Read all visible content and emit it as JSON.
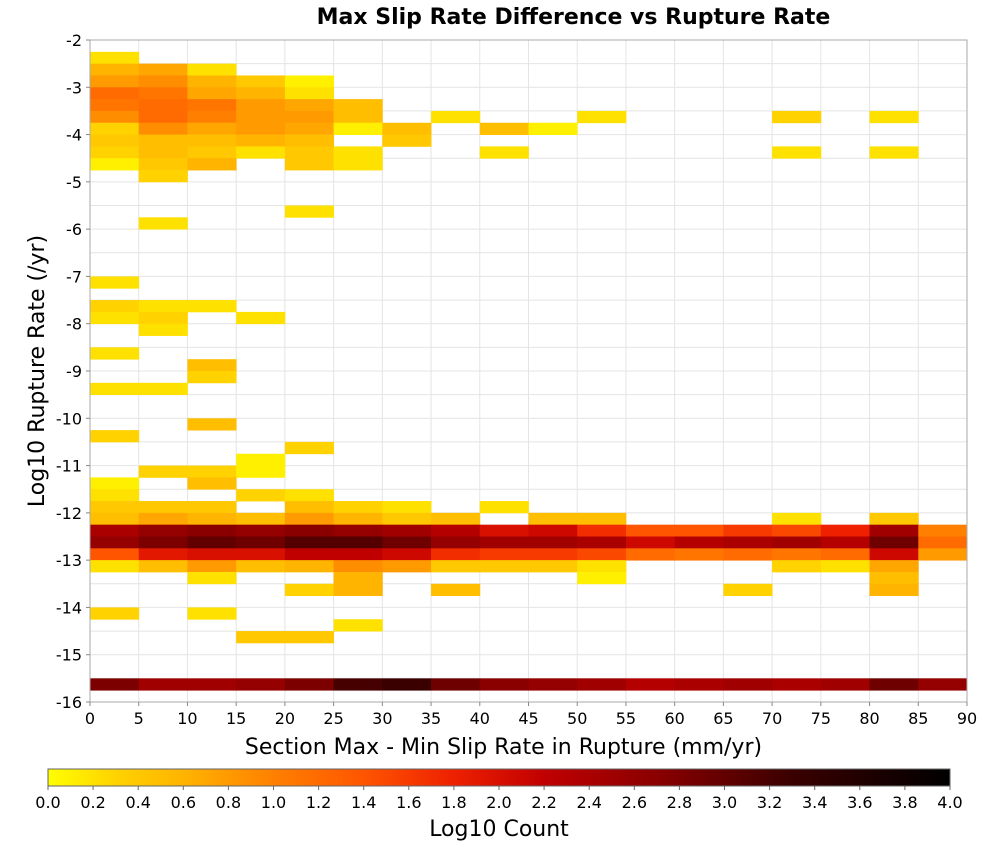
{
  "chart_data": {
    "type": "heatmap",
    "title": "Max Slip Rate Difference vs Rupture Rate",
    "xlabel": "Section Max - Min Slip Rate in Rupture (mm/yr)",
    "ylabel": "Log10 Rupture Rate (/yr)",
    "xlim": [
      0,
      90
    ],
    "ylim": [
      -16,
      -2
    ],
    "x_ticks": [
      0,
      5,
      10,
      15,
      20,
      25,
      30,
      35,
      40,
      45,
      50,
      55,
      60,
      65,
      70,
      75,
      80,
      85,
      90
    ],
    "y_ticks": [
      -2,
      -3,
      -4,
      -5,
      -6,
      -7,
      -8,
      -9,
      -10,
      -11,
      -12,
      -13,
      -14,
      -15,
      -16
    ],
    "cell_width": 5,
    "cell_height": 0.25,
    "grid": true,
    "colorbar": {
      "label": "Log10 Count",
      "min": 0.0,
      "max": 4.0,
      "ticks": [
        "0.0",
        "0.2",
        "0.4",
        "0.6",
        "0.8",
        "1.0",
        "1.2",
        "1.4",
        "1.6",
        "1.8",
        "2.0",
        "2.2",
        "2.4",
        "2.6",
        "2.8",
        "3.0",
        "3.2",
        "3.4",
        "3.6",
        "3.8",
        "4.0"
      ],
      "colors": [
        "#ffff00",
        "#ffd200",
        "#ffb400",
        "#ff8000",
        "#ff5500",
        "#ee2000",
        "#c00000",
        "#8a0000",
        "#3a0000",
        "#000000"
      ],
      "color_stops": [
        0.0,
        0.3,
        0.6,
        1.0,
        1.4,
        1.8,
        2.2,
        2.7,
        3.3,
        4.0
      ],
      "placement": "bottom"
    },
    "cells": [
      {
        "x": 0,
        "y": -2.5,
        "v": 0.2
      },
      {
        "x": 0,
        "y": -2.75,
        "v": 0.6
      },
      {
        "x": 5,
        "y": -2.75,
        "v": 0.7
      },
      {
        "x": 10,
        "y": -2.75,
        "v": 0.2
      },
      {
        "x": 0,
        "y": -3,
        "v": 0.8
      },
      {
        "x": 5,
        "y": -3,
        "v": 0.9
      },
      {
        "x": 10,
        "y": -3,
        "v": 0.6
      },
      {
        "x": 15,
        "y": -3,
        "v": 0.4
      },
      {
        "x": 20,
        "y": -3,
        "v": 0.1
      },
      {
        "x": 0,
        "y": -3.25,
        "v": 1.2
      },
      {
        "x": 5,
        "y": -3.25,
        "v": 1.1
      },
      {
        "x": 10,
        "y": -3.25,
        "v": 0.7
      },
      {
        "x": 15,
        "y": -3.25,
        "v": 0.6
      },
      {
        "x": 20,
        "y": -3.25,
        "v": 0.2
      },
      {
        "x": 0,
        "y": -3.5,
        "v": 1.1
      },
      {
        "x": 5,
        "y": -3.5,
        "v": 1.2
      },
      {
        "x": 10,
        "y": -3.5,
        "v": 1.1
      },
      {
        "x": 15,
        "y": -3.5,
        "v": 0.8
      },
      {
        "x": 20,
        "y": -3.5,
        "v": 0.7
      },
      {
        "x": 25,
        "y": -3.5,
        "v": 0.5
      },
      {
        "x": 0,
        "y": -3.75,
        "v": 0.9
      },
      {
        "x": 5,
        "y": -3.75,
        "v": 1.2
      },
      {
        "x": 10,
        "y": -3.75,
        "v": 1.0
      },
      {
        "x": 15,
        "y": -3.75,
        "v": 0.8
      },
      {
        "x": 20,
        "y": -3.75,
        "v": 0.8
      },
      {
        "x": 25,
        "y": -3.75,
        "v": 0.5
      },
      {
        "x": 35,
        "y": -3.75,
        "v": 0.2
      },
      {
        "x": 50,
        "y": -3.75,
        "v": 0.2
      },
      {
        "x": 70,
        "y": -3.75,
        "v": 0.3
      },
      {
        "x": 80,
        "y": -3.75,
        "v": 0.2
      },
      {
        "x": 0,
        "y": -4,
        "v": 0.3
      },
      {
        "x": 5,
        "y": -4,
        "v": 0.9
      },
      {
        "x": 10,
        "y": -4,
        "v": 0.7
      },
      {
        "x": 15,
        "y": -4,
        "v": 0.8
      },
      {
        "x": 20,
        "y": -4,
        "v": 0.7
      },
      {
        "x": 25,
        "y": -4,
        "v": 0.1
      },
      {
        "x": 30,
        "y": -4,
        "v": 0.5
      },
      {
        "x": 40,
        "y": -4,
        "v": 0.5
      },
      {
        "x": 45,
        "y": -4,
        "v": 0.1
      },
      {
        "x": 0,
        "y": -4.25,
        "v": 0.4
      },
      {
        "x": 5,
        "y": -4.25,
        "v": 0.5
      },
      {
        "x": 10,
        "y": -4.25,
        "v": 0.5
      },
      {
        "x": 15,
        "y": -4.25,
        "v": 0.6
      },
      {
        "x": 20,
        "y": -4.25,
        "v": 0.5
      },
      {
        "x": 30,
        "y": -4.25,
        "v": 0.4
      },
      {
        "x": 0,
        "y": -4.5,
        "v": 0.3
      },
      {
        "x": 5,
        "y": -4.5,
        "v": 0.5
      },
      {
        "x": 10,
        "y": -4.5,
        "v": 0.4
      },
      {
        "x": 15,
        "y": -4.5,
        "v": 0.2
      },
      {
        "x": 20,
        "y": -4.5,
        "v": 0.4
      },
      {
        "x": 25,
        "y": -4.5,
        "v": 0.2
      },
      {
        "x": 40,
        "y": -4.5,
        "v": 0.2
      },
      {
        "x": 70,
        "y": -4.5,
        "v": 0.2
      },
      {
        "x": 80,
        "y": -4.5,
        "v": 0.2
      },
      {
        "x": 0,
        "y": -4.75,
        "v": 0.1
      },
      {
        "x": 5,
        "y": -4.75,
        "v": 0.4
      },
      {
        "x": 10,
        "y": -4.75,
        "v": 0.6
      },
      {
        "x": 20,
        "y": -4.75,
        "v": 0.4
      },
      {
        "x": 25,
        "y": -4.75,
        "v": 0.2
      },
      {
        "x": 5,
        "y": -5,
        "v": 0.3
      },
      {
        "x": 20,
        "y": -5.75,
        "v": 0.2
      },
      {
        "x": 5,
        "y": -6,
        "v": 0.2
      },
      {
        "x": 0,
        "y": -7.25,
        "v": 0.2
      },
      {
        "x": 0,
        "y": -7.75,
        "v": 0.3
      },
      {
        "x": 5,
        "y": -7.75,
        "v": 0.2
      },
      {
        "x": 10,
        "y": -7.75,
        "v": 0.2
      },
      {
        "x": 0,
        "y": -8,
        "v": 0.2
      },
      {
        "x": 5,
        "y": -8,
        "v": 0.3
      },
      {
        "x": 15,
        "y": -8,
        "v": 0.2
      },
      {
        "x": 5,
        "y": -8.25,
        "v": 0.2
      },
      {
        "x": 0,
        "y": -8.75,
        "v": 0.2
      },
      {
        "x": 10,
        "y": -9,
        "v": 0.5
      },
      {
        "x": 10,
        "y": -9.25,
        "v": 0.3
      },
      {
        "x": 0,
        "y": -9.5,
        "v": 0.2
      },
      {
        "x": 5,
        "y": -9.5,
        "v": 0.2
      },
      {
        "x": 10,
        "y": -10.25,
        "v": 0.5
      },
      {
        "x": 0,
        "y": -10.5,
        "v": 0.3
      },
      {
        "x": 20,
        "y": -10.75,
        "v": 0.3
      },
      {
        "x": 15,
        "y": -11,
        "v": 0.1
      },
      {
        "x": 5,
        "y": -11.25,
        "v": 0.3
      },
      {
        "x": 10,
        "y": -11.25,
        "v": 0.3
      },
      {
        "x": 15,
        "y": -11.25,
        "v": 0.1
      },
      {
        "x": 0,
        "y": -11.5,
        "v": 0.1
      },
      {
        "x": 10,
        "y": -11.5,
        "v": 0.5
      },
      {
        "x": 0,
        "y": -11.75,
        "v": 0.2
      },
      {
        "x": 15,
        "y": -11.75,
        "v": 0.3
      },
      {
        "x": 20,
        "y": -11.75,
        "v": 0.2
      },
      {
        "x": 0,
        "y": -12,
        "v": 0.4
      },
      {
        "x": 5,
        "y": -12,
        "v": 0.4
      },
      {
        "x": 10,
        "y": -12,
        "v": 0.4
      },
      {
        "x": 20,
        "y": -12,
        "v": 0.5
      },
      {
        "x": 25,
        "y": -12,
        "v": 0.3
      },
      {
        "x": 30,
        "y": -12,
        "v": 0.2
      },
      {
        "x": 40,
        "y": -12,
        "v": 0.2
      },
      {
        "x": 0,
        "y": -12.25,
        "v": 0.5
      },
      {
        "x": 5,
        "y": -12.25,
        "v": 0.7
      },
      {
        "x": 10,
        "y": -12.25,
        "v": 0.6
      },
      {
        "x": 15,
        "y": -12.25,
        "v": 0.5
      },
      {
        "x": 20,
        "y": -12.25,
        "v": 0.8
      },
      {
        "x": 25,
        "y": -12.25,
        "v": 0.6
      },
      {
        "x": 30,
        "y": -12.25,
        "v": 0.4
      },
      {
        "x": 35,
        "y": -12.25,
        "v": 0.5
      },
      {
        "x": 45,
        "y": -12.25,
        "v": 0.5
      },
      {
        "x": 50,
        "y": -12.25,
        "v": 0.5
      },
      {
        "x": 70,
        "y": -12.25,
        "v": 0.2
      },
      {
        "x": 80,
        "y": -12.25,
        "v": 0.4
      },
      {
        "x": 0,
        "y": -12.5,
        "v": 2.4
      },
      {
        "x": 5,
        "y": -12.5,
        "v": 2.6
      },
      {
        "x": 10,
        "y": -12.5,
        "v": 2.7
      },
      {
        "x": 15,
        "y": -12.5,
        "v": 2.6
      },
      {
        "x": 20,
        "y": -12.5,
        "v": 2.7
      },
      {
        "x": 25,
        "y": -12.5,
        "v": 2.6
      },
      {
        "x": 30,
        "y": -12.5,
        "v": 2.5
      },
      {
        "x": 35,
        "y": -12.5,
        "v": 2.3
      },
      {
        "x": 40,
        "y": -12.5,
        "v": 2.0
      },
      {
        "x": 45,
        "y": -12.5,
        "v": 2.1
      },
      {
        "x": 50,
        "y": -12.5,
        "v": 1.7
      },
      {
        "x": 55,
        "y": -12.5,
        "v": 1.4
      },
      {
        "x": 60,
        "y": -12.5,
        "v": 1.4
      },
      {
        "x": 65,
        "y": -12.5,
        "v": 1.6
      },
      {
        "x": 70,
        "y": -12.5,
        "v": 1.5
      },
      {
        "x": 75,
        "y": -12.5,
        "v": 1.8
      },
      {
        "x": 80,
        "y": -12.5,
        "v": 2.5
      },
      {
        "x": 85,
        "y": -12.5,
        "v": 1.0
      },
      {
        "x": 0,
        "y": -12.75,
        "v": 2.6
      },
      {
        "x": 5,
        "y": -12.75,
        "v": 2.8
      },
      {
        "x": 10,
        "y": -12.75,
        "v": 3.0
      },
      {
        "x": 15,
        "y": -12.75,
        "v": 2.9
      },
      {
        "x": 20,
        "y": -12.75,
        "v": 3.1
      },
      {
        "x": 25,
        "y": -12.75,
        "v": 3.1
      },
      {
        "x": 30,
        "y": -12.75,
        "v": 2.9
      },
      {
        "x": 35,
        "y": -12.75,
        "v": 2.6
      },
      {
        "x": 40,
        "y": -12.75,
        "v": 2.5
      },
      {
        "x": 45,
        "y": -12.75,
        "v": 2.5
      },
      {
        "x": 50,
        "y": -12.75,
        "v": 2.4
      },
      {
        "x": 55,
        "y": -12.75,
        "v": 2.1
      },
      {
        "x": 60,
        "y": -12.75,
        "v": 2.3
      },
      {
        "x": 65,
        "y": -12.75,
        "v": 2.4
      },
      {
        "x": 70,
        "y": -12.75,
        "v": 2.5
      },
      {
        "x": 75,
        "y": -12.75,
        "v": 2.3
      },
      {
        "x": 80,
        "y": -12.75,
        "v": 2.9
      },
      {
        "x": 85,
        "y": -12.75,
        "v": 1.2
      },
      {
        "x": 0,
        "y": -13,
        "v": 1.4
      },
      {
        "x": 5,
        "y": -13,
        "v": 1.9
      },
      {
        "x": 10,
        "y": -13,
        "v": 2.0
      },
      {
        "x": 15,
        "y": -13,
        "v": 2.0
      },
      {
        "x": 20,
        "y": -13,
        "v": 2.2
      },
      {
        "x": 25,
        "y": -13,
        "v": 2.2
      },
      {
        "x": 30,
        "y": -13,
        "v": 2.1
      },
      {
        "x": 35,
        "y": -13,
        "v": 1.7
      },
      {
        "x": 40,
        "y": -13,
        "v": 1.6
      },
      {
        "x": 45,
        "y": -13,
        "v": 1.6
      },
      {
        "x": 50,
        "y": -13,
        "v": 1.5
      },
      {
        "x": 55,
        "y": -13,
        "v": 1.2
      },
      {
        "x": 60,
        "y": -13,
        "v": 1.1
      },
      {
        "x": 65,
        "y": -13,
        "v": 1.2
      },
      {
        "x": 70,
        "y": -13,
        "v": 1.1
      },
      {
        "x": 75,
        "y": -13,
        "v": 1.2
      },
      {
        "x": 80,
        "y": -13,
        "v": 2.1
      },
      {
        "x": 85,
        "y": -13,
        "v": 0.8
      },
      {
        "x": 0,
        "y": -13.25,
        "v": 0.2
      },
      {
        "x": 5,
        "y": -13.25,
        "v": 0.5
      },
      {
        "x": 10,
        "y": -13.25,
        "v": 0.8
      },
      {
        "x": 15,
        "y": -13.25,
        "v": 0.5
      },
      {
        "x": 20,
        "y": -13.25,
        "v": 0.6
      },
      {
        "x": 25,
        "y": -13.25,
        "v": 0.9
      },
      {
        "x": 30,
        "y": -13.25,
        "v": 0.8
      },
      {
        "x": 35,
        "y": -13.25,
        "v": 0.4
      },
      {
        "x": 40,
        "y": -13.25,
        "v": 0.4
      },
      {
        "x": 45,
        "y": -13.25,
        "v": 0.4
      },
      {
        "x": 50,
        "y": -13.25,
        "v": 0.2
      },
      {
        "x": 70,
        "y": -13.25,
        "v": 0.3
      },
      {
        "x": 75,
        "y": -13.25,
        "v": 0.2
      },
      {
        "x": 80,
        "y": -13.25,
        "v": 0.7
      },
      {
        "x": 10,
        "y": -13.5,
        "v": 0.2
      },
      {
        "x": 25,
        "y": -13.5,
        "v": 0.6
      },
      {
        "x": 50,
        "y": -13.5,
        "v": 0.1
      },
      {
        "x": 80,
        "y": -13.5,
        "v": 0.5
      },
      {
        "x": 20,
        "y": -13.75,
        "v": 0.3
      },
      {
        "x": 25,
        "y": -13.75,
        "v": 0.6
      },
      {
        "x": 35,
        "y": -13.75,
        "v": 0.5
      },
      {
        "x": 65,
        "y": -13.75,
        "v": 0.3
      },
      {
        "x": 80,
        "y": -13.75,
        "v": 0.6
      },
      {
        "x": 0,
        "y": -14.25,
        "v": 0.3
      },
      {
        "x": 10,
        "y": -14.25,
        "v": 0.2
      },
      {
        "x": 25,
        "y": -14.5,
        "v": 0.2
      },
      {
        "x": 15,
        "y": -14.75,
        "v": 0.4
      },
      {
        "x": 20,
        "y": -14.75,
        "v": 0.4
      },
      {
        "x": 0,
        "y": -15.75,
        "v": 2.8
      },
      {
        "x": 5,
        "y": -15.75,
        "v": 2.5
      },
      {
        "x": 10,
        "y": -15.75,
        "v": 2.5
      },
      {
        "x": 15,
        "y": -15.75,
        "v": 2.6
      },
      {
        "x": 20,
        "y": -15.75,
        "v": 2.8
      },
      {
        "x": 25,
        "y": -15.75,
        "v": 3.2
      },
      {
        "x": 30,
        "y": -15.75,
        "v": 3.3
      },
      {
        "x": 35,
        "y": -15.75,
        "v": 2.9
      },
      {
        "x": 40,
        "y": -15.75,
        "v": 2.7
      },
      {
        "x": 45,
        "y": -15.75,
        "v": 2.6
      },
      {
        "x": 50,
        "y": -15.75,
        "v": 2.5
      },
      {
        "x": 55,
        "y": -15.75,
        "v": 2.3
      },
      {
        "x": 60,
        "y": -15.75,
        "v": 2.4
      },
      {
        "x": 65,
        "y": -15.75,
        "v": 2.5
      },
      {
        "x": 70,
        "y": -15.75,
        "v": 2.4
      },
      {
        "x": 75,
        "y": -15.75,
        "v": 2.5
      },
      {
        "x": 80,
        "y": -15.75,
        "v": 2.9
      },
      {
        "x": 85,
        "y": -15.75,
        "v": 2.6
      }
    ]
  }
}
